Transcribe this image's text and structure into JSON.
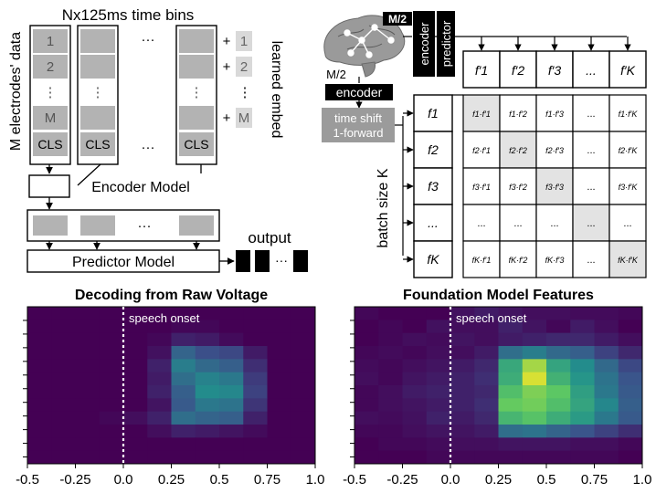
{
  "schematic": {
    "time_bins_label": "Nx125ms time bins",
    "electrodes_label": "M electrodes' data",
    "learned_embed_label": "learned embed",
    "column_rows": [
      "1",
      "2",
      "⋮",
      "M",
      "CLS"
    ],
    "column_ellipsis": "⋮",
    "embed_values": [
      "+ 1",
      "+ 2",
      "⋮",
      "+ M"
    ],
    "horizontal_ellipsis": "···",
    "encoder_model_label": "Encoder Model",
    "predictor_model_label": "Predictor Model",
    "output_label": "output"
  },
  "contrastive": {
    "m2_top": "M/2",
    "m2_left": "M/2",
    "encoder_label": "encoder",
    "predictor_label": "predictor",
    "encoder_left_label": "encoder",
    "time_shift_label": "time shift",
    "forward_label": "1-forward",
    "batch_size_label": "batch size K",
    "col_headers": [
      "f′1",
      "f′2",
      "f′3",
      "...",
      "f′K"
    ],
    "row_headers": [
      "f1",
      "f2",
      "f3",
      "...",
      "fK"
    ],
    "matrix": [
      [
        "f1·f′1",
        "f1·f′2",
        "f1·f′3",
        "...",
        "f1·f′K"
      ],
      [
        "f2·f′1",
        "f2·f′2",
        "f2·f′3",
        "...",
        "f2·f′K"
      ],
      [
        "f3·f′1",
        "f3·f′2",
        "f3·f′3",
        "...",
        "f3·f′K"
      ],
      [
        "...",
        "...",
        "...",
        "...",
        "..."
      ],
      [
        "fK·f′1",
        "fK·f′2",
        "fK·f′3",
        "...",
        "fK·f′K"
      ]
    ]
  },
  "colors": {
    "heat_low": "#440154",
    "heat_mid": "#21918c",
    "heat_high": "#fde725",
    "box_gray": "#b3b3b3",
    "diag_gray": "#e3e3e3"
  },
  "chart_data": [
    {
      "type": "heatmap",
      "title": "Decoding from Raw Voltage",
      "annotation": "speech onset",
      "onset": 0.0,
      "xlim": [
        -0.5,
        1.0
      ],
      "x_ticks": [
        "-0.5",
        "-0.25",
        "0.0",
        "0.25",
        "0.5",
        "0.75",
        "1.0"
      ],
      "x_tick_values": [
        -0.5,
        -0.25,
        0.0,
        0.25,
        0.5,
        0.75,
        1.0
      ],
      "n_rows": 12,
      "n_cols": 12,
      "values": [
        [
          0.0,
          0.0,
          0.0,
          0.0,
          0.0,
          0.0,
          0.0,
          0.0,
          0.0,
          0.0,
          0.0,
          0.0
        ],
        [
          0.0,
          0.0,
          0.0,
          0.0,
          0.0,
          0.0,
          0.02,
          0.02,
          0.0,
          0.0,
          0.0,
          0.0
        ],
        [
          0.0,
          0.0,
          0.0,
          0.0,
          0.0,
          0.02,
          0.1,
          0.08,
          0.03,
          0.0,
          0.0,
          0.0
        ],
        [
          0.0,
          0.0,
          0.0,
          0.0,
          0.0,
          0.05,
          0.32,
          0.24,
          0.22,
          0.08,
          0.0,
          0.0
        ],
        [
          0.0,
          0.0,
          0.0,
          0.0,
          0.0,
          0.1,
          0.42,
          0.34,
          0.3,
          0.14,
          0.0,
          0.0
        ],
        [
          0.0,
          0.0,
          0.0,
          0.0,
          0.0,
          0.08,
          0.36,
          0.44,
          0.4,
          0.18,
          0.0,
          0.0
        ],
        [
          0.0,
          0.0,
          0.0,
          0.0,
          0.0,
          0.1,
          0.3,
          0.48,
          0.46,
          0.2,
          0.0,
          0.0
        ],
        [
          0.0,
          0.0,
          0.0,
          0.0,
          0.0,
          0.06,
          0.28,
          0.4,
          0.38,
          0.16,
          0.0,
          0.0
        ],
        [
          0.0,
          0.0,
          0.0,
          0.02,
          0.04,
          0.1,
          0.36,
          0.32,
          0.3,
          0.1,
          0.0,
          0.0
        ],
        [
          0.0,
          0.0,
          0.0,
          0.0,
          0.0,
          0.04,
          0.1,
          0.08,
          0.06,
          0.03,
          0.0,
          0.0
        ],
        [
          0.0,
          0.0,
          0.0,
          0.0,
          0.0,
          0.0,
          0.0,
          0.0,
          0.0,
          0.0,
          0.0,
          0.0
        ],
        [
          0.0,
          0.0,
          0.0,
          0.0,
          0.0,
          0.0,
          0.0,
          0.0,
          0.0,
          0.0,
          0.0,
          0.0
        ]
      ]
    },
    {
      "type": "heatmap",
      "title": "Foundation Model Features",
      "annotation": "speech onset",
      "onset": 0.0,
      "xlim": [
        -0.5,
        1.0
      ],
      "x_ticks": [
        "-0.5",
        "-0.25",
        "0.0",
        "0.25",
        "0.5",
        "0.75",
        "1.0"
      ],
      "x_tick_values": [
        -0.5,
        -0.25,
        0.0,
        0.25,
        0.5,
        0.75,
        1.0
      ],
      "n_rows": 12,
      "n_cols": 12,
      "values": [
        [
          0.02,
          0.0,
          0.0,
          0.0,
          0.05,
          0.08,
          0.06,
          0.04,
          0.04,
          0.03,
          0.03,
          0.02
        ],
        [
          0.0,
          0.02,
          0.0,
          0.05,
          0.04,
          0.04,
          0.1,
          0.06,
          0.02,
          0.08,
          0.04,
          0.0
        ],
        [
          0.0,
          0.02,
          0.04,
          0.03,
          0.06,
          0.04,
          0.08,
          0.1,
          0.12,
          0.12,
          0.08,
          0.04
        ],
        [
          0.02,
          0.03,
          0.02,
          0.04,
          0.04,
          0.08,
          0.36,
          0.42,
          0.34,
          0.3,
          0.2,
          0.12
        ],
        [
          0.03,
          0.02,
          0.04,
          0.06,
          0.08,
          0.12,
          0.6,
          0.86,
          0.58,
          0.48,
          0.34,
          0.22
        ],
        [
          0.04,
          0.02,
          0.06,
          0.08,
          0.1,
          0.14,
          0.62,
          0.94,
          0.64,
          0.52,
          0.38,
          0.26
        ],
        [
          0.02,
          0.04,
          0.08,
          0.1,
          0.1,
          0.12,
          0.7,
          0.8,
          0.74,
          0.56,
          0.4,
          0.28
        ],
        [
          0.02,
          0.04,
          0.06,
          0.08,
          0.1,
          0.14,
          0.76,
          0.78,
          0.7,
          0.58,
          0.46,
          0.3
        ],
        [
          0.04,
          0.03,
          0.05,
          0.1,
          0.08,
          0.12,
          0.66,
          0.72,
          0.62,
          0.54,
          0.4,
          0.28
        ],
        [
          0.02,
          0.02,
          0.04,
          0.06,
          0.06,
          0.08,
          0.36,
          0.38,
          0.32,
          0.26,
          0.2,
          0.14
        ],
        [
          0.0,
          0.02,
          0.02,
          0.03,
          0.04,
          0.04,
          0.06,
          0.06,
          0.06,
          0.04,
          0.04,
          0.02
        ],
        [
          0.0,
          0.0,
          0.0,
          0.02,
          0.02,
          0.02,
          0.02,
          0.02,
          0.02,
          0.02,
          0.02,
          0.0
        ]
      ]
    }
  ]
}
